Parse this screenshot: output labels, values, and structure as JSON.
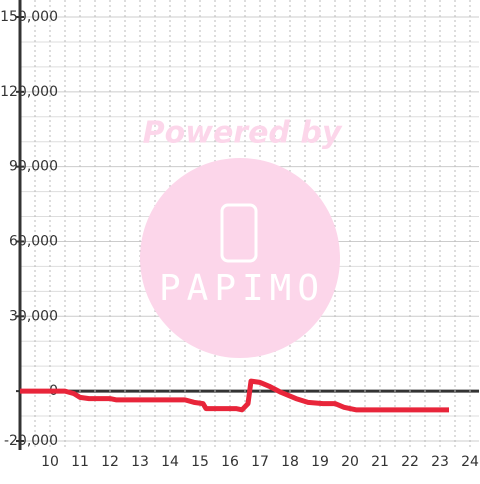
{
  "chart_data": {
    "type": "line",
    "watermark": {
      "line1": "Powered by",
      "line2": "PAPIMO"
    },
    "xlim": [
      9,
      24.3
    ],
    "xticks": [
      10,
      11,
      12,
      13,
      14,
      15,
      16,
      17,
      18,
      19,
      20,
      21,
      22,
      23,
      24
    ],
    "x_minor_ticks": [
      9.5,
      10,
      10.5,
      11,
      11.5,
      12,
      12.5,
      13,
      13.5,
      14,
      14.5,
      15,
      15.5,
      16,
      16.5,
      17,
      17.5,
      18,
      18.5,
      19,
      19.5,
      20,
      20.5,
      21,
      21.5,
      22,
      22.5,
      23,
      23.5,
      24
    ],
    "ylim": [
      -20000,
      150000
    ],
    "yticks": [
      {
        "value": -20000,
        "label": "-20,000"
      },
      0,
      {
        "value": 30000,
        "label": "30,000"
      },
      {
        "value": 60000,
        "label": "60,000"
      },
      {
        "value": 90000,
        "label": "90,000"
      },
      {
        "value": 120000,
        "label": "120,000"
      },
      {
        "value": 150000,
        "label": "150,000"
      }
    ],
    "y_minor_ticks": [
      -10000,
      10000,
      20000,
      40000,
      50000,
      70000,
      80000,
      100000,
      110000,
      130000,
      140000
    ],
    "grid": true,
    "series": [
      {
        "color": "#e8253a",
        "x": [
          9,
          10.5,
          10.8,
          11,
          11.3,
          12,
          12.2,
          14.5,
          14.8,
          15.1,
          15.2,
          16.2,
          16.4,
          16.6,
          16.7,
          17,
          17.3,
          17.7,
          18.2,
          18.6,
          19.1,
          19.5,
          19.8,
          20.2,
          20.5,
          23.3
        ],
        "values": [
          0,
          0,
          -1000,
          -2500,
          -3000,
          -3000,
          -3500,
          -3500,
          -4500,
          -5000,
          -7000,
          -7000,
          -7500,
          -5000,
          4000,
          3500,
          2000,
          -500,
          -3000,
          -4500,
          -5000,
          -5000,
          -6500,
          -7500,
          -7500,
          -7500
        ]
      }
    ]
  }
}
